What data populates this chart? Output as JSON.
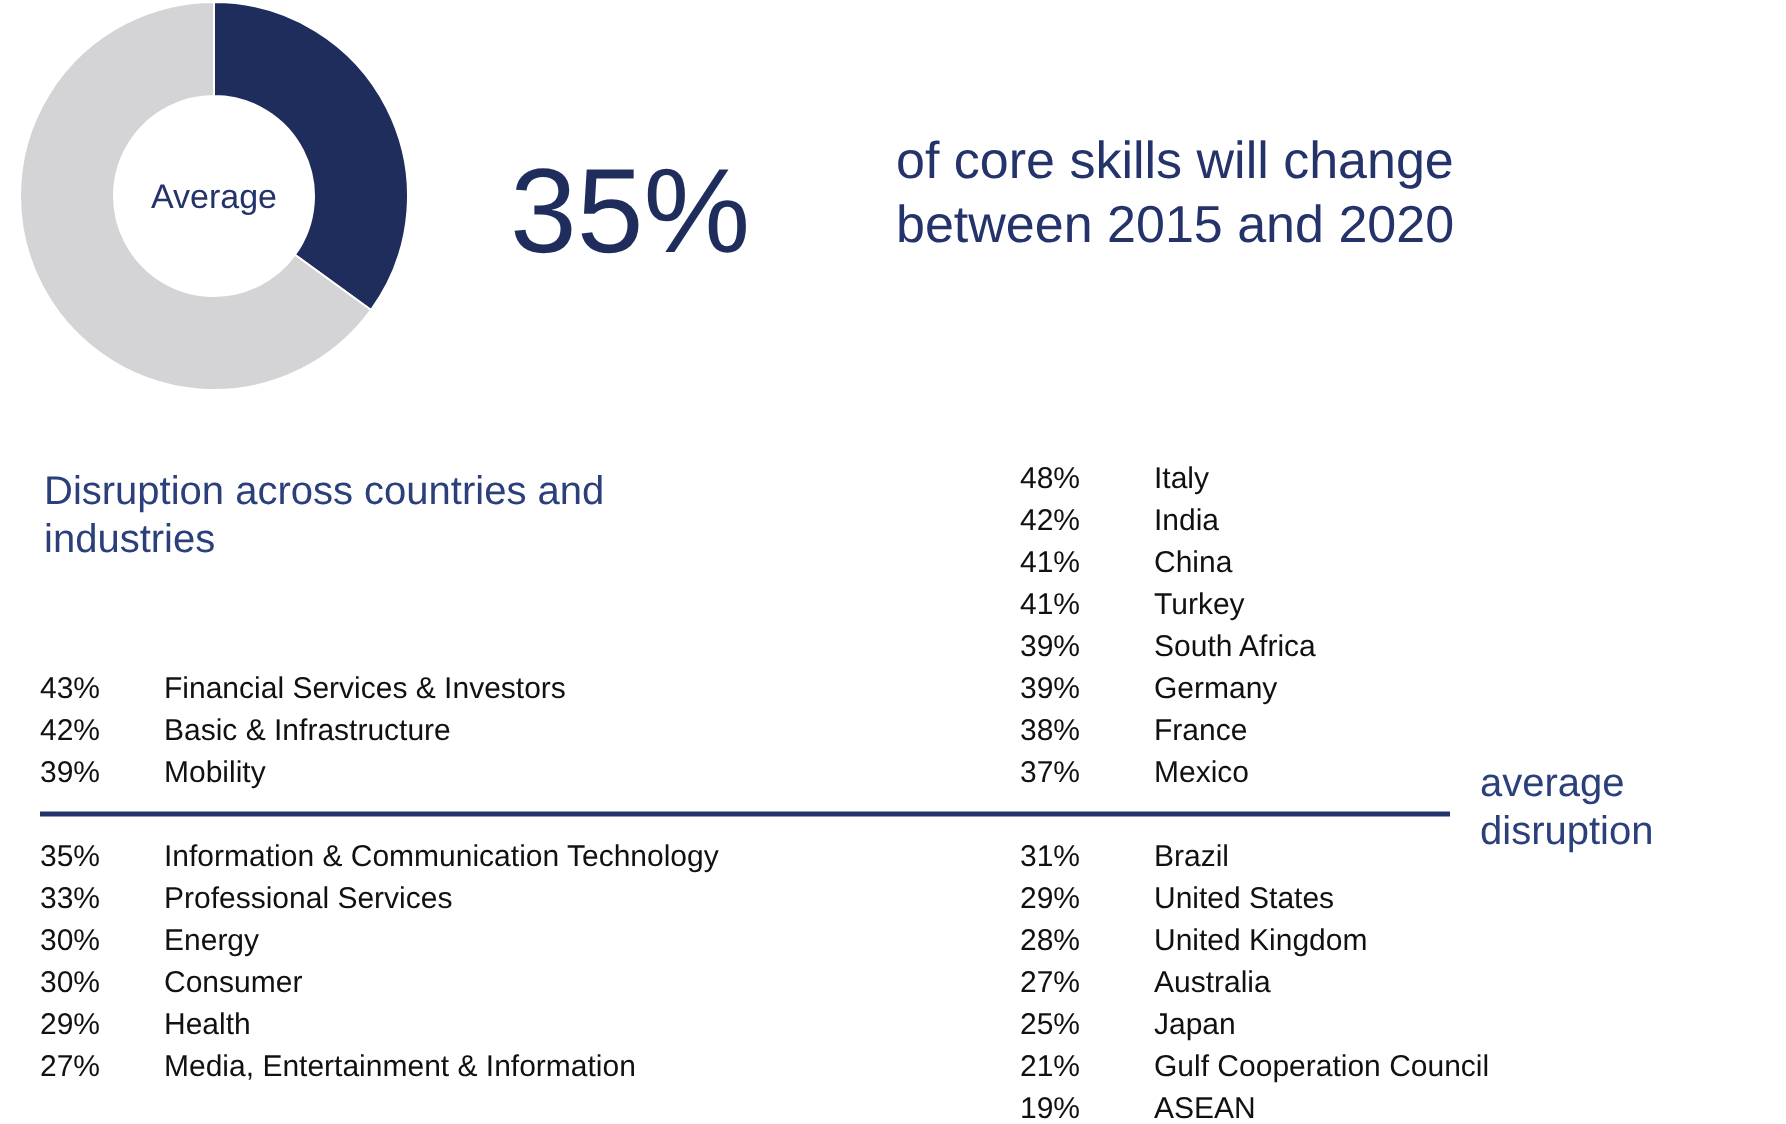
{
  "chart_data": [
    {
      "type": "donut",
      "title": "of core skills will change between 2015 and 2020",
      "categories": [
        null,
        null
      ],
      "values": [
        35,
        65
      ],
      "colors": [
        "#1f2d5c",
        "#d4d4d6"
      ],
      "value_labels": [
        "35%",
        null
      ],
      "annotations": [
        "Average"
      ]
    },
    {
      "type": "other",
      "title": "Disruption across countries and industries",
      "categories": [
        "Financial Services & Investors",
        "Basic & Infrastructure",
        "Mobility",
        "Information & Communication Technology",
        "Professional Services",
        "Energy",
        "Consumer",
        "Health",
        "Media, Entertainment & Information"
      ],
      "values": [
        43,
        42,
        39,
        35,
        33,
        30,
        30,
        29,
        27
      ],
      "value_labels": [
        "43%",
        "42%",
        "39%",
        "35%",
        "33%",
        "30%",
        "30%",
        "29%",
        "27%"
      ]
    },
    {
      "type": "other",
      "categories": [
        "Italy",
        "India",
        "China",
        "Turkey",
        "South Africa",
        "Germany",
        "France",
        "Mexico",
        "Brazil",
        "United States",
        "United Kingdom",
        "Australia",
        "Japan",
        "Gulf Cooperation Council",
        "ASEAN"
      ],
      "values": [
        48,
        42,
        41,
        41,
        39,
        39,
        38,
        37,
        31,
        29,
        28,
        27,
        25,
        21,
        19
      ],
      "value_labels": [
        "48%",
        "42%",
        "41%",
        "41%",
        "39%",
        "39%",
        "38%",
        "37%",
        "31%",
        "29%",
        "28%",
        "27%",
        "25%",
        "21%",
        "19%"
      ],
      "annotations": [
        "average disruption"
      ]
    }
  ]
}
